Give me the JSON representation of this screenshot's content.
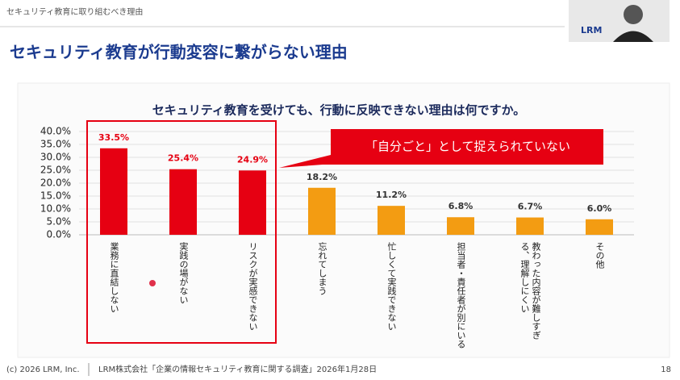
{
  "header": {
    "section": "セキュリティ教育に取り組むべき理由",
    "title": "セキュリティ教育が行動変容に繋がらない理由",
    "logo": "LRM"
  },
  "chart_data": {
    "type": "bar",
    "title": "セキュリティ教育を受けても、行動に反映できない理由は何ですか。",
    "categories": [
      "業務に直結しない",
      "実践の場がない",
      "リスクが実感できない",
      "忘れてしまう",
      "忙しくて実践できない",
      "担当者・責任者が別にいる",
      "教わった内容が難しすぎる、理解しにくい",
      "その他"
    ],
    "values": [
      33.5,
      25.4,
      24.9,
      18.2,
      11.2,
      6.8,
      6.7,
      6.0
    ],
    "value_labels": [
      "33.5%",
      "25.4%",
      "24.9%",
      "18.2%",
      "11.2%",
      "6.8%",
      "6.7%",
      "6.0%"
    ],
    "colors": [
      "#e60012",
      "#e60012",
      "#e60012",
      "#f39c12",
      "#f39c12",
      "#f39c12",
      "#f39c12",
      "#f39c12"
    ],
    "value_label_colors": [
      "#e60012",
      "#e60012",
      "#e60012",
      "#333333",
      "#333333",
      "#333333",
      "#333333",
      "#333333"
    ],
    "ylim": [
      0,
      40
    ],
    "yticks": [
      {
        "value": 0,
        "label": "0.0%"
      },
      {
        "value": 5,
        "label": "5.0%"
      },
      {
        "value": 10,
        "label": "10.0%"
      },
      {
        "value": 15,
        "label": "15.0%"
      },
      {
        "value": 20,
        "label": "20.0%"
      },
      {
        "value": 25,
        "label": "25.0%"
      },
      {
        "value": 30,
        "label": "30.0%"
      },
      {
        "value": 35,
        "label": "35.0%"
      },
      {
        "value": 40,
        "label": "40.0%"
      }
    ],
    "grid": true,
    "annotation": "「自分ごと」として捉えられていない"
  },
  "footer": {
    "copyright": "(c) 2026 LRM, Inc.",
    "source": "LRM株式会社「企業の情報セキュリティ教育に関する調査」2026年1月28日",
    "page": "18"
  }
}
